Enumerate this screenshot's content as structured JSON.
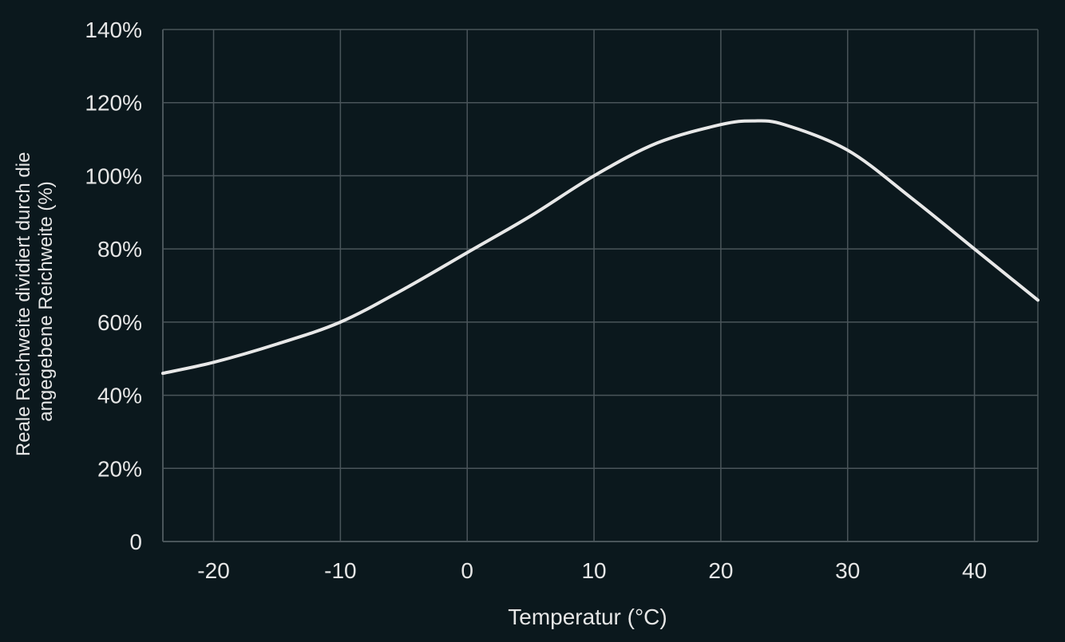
{
  "colors": {
    "background": "#0b181d",
    "grid": "#4a555a",
    "text": "#e6e6e6",
    "line": "#e8e8e8"
  },
  "chart_data": {
    "type": "line",
    "title": "",
    "xlabel": "Temperatur (°C)",
    "ylabel_lines": [
      "Reale Reichweite dividiert durch die",
      "angegebene Reichweite (%)"
    ],
    "xlim": [
      -24,
      45
    ],
    "ylim": [
      0,
      140
    ],
    "x_ticks": [
      -20,
      -10,
      0,
      10,
      20,
      30,
      40
    ],
    "x_tick_labels": [
      "-20",
      "-10",
      "0",
      "10",
      "20",
      "30",
      "40"
    ],
    "y_ticks": [
      0,
      20,
      40,
      60,
      80,
      100,
      120,
      140
    ],
    "y_tick_labels": [
      "0",
      "20%",
      "40%",
      "60%",
      "80%",
      "100%",
      "120%",
      "140%"
    ],
    "grid": true,
    "legend": "none",
    "series": [
      {
        "x": [
          -24,
          -20,
          -15,
          -10,
          -5,
          0,
          5,
          10,
          15,
          20,
          22.5,
          25,
          30,
          35,
          40,
          45
        ],
        "y": [
          46,
          49,
          54,
          60,
          69,
          79,
          89,
          100,
          109,
          114,
          115,
          114,
          107,
          94,
          80,
          66
        ]
      }
    ]
  }
}
